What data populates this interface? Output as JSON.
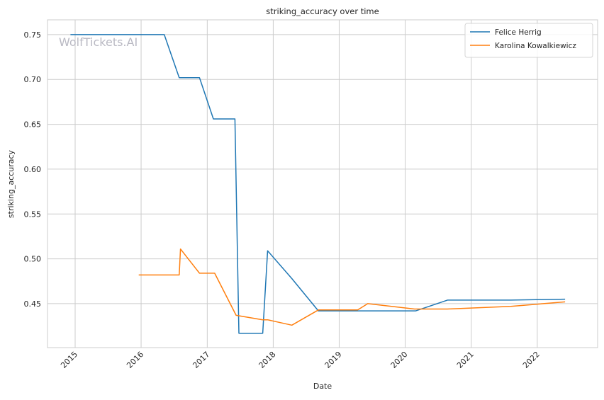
{
  "chart_data": {
    "type": "line",
    "title": "striking_accuracy over time",
    "xlabel": "Date",
    "ylabel": "striking_accuracy",
    "xlim": [
      "2014-08-01",
      "2022-12-01"
    ],
    "ylim": [
      0.401,
      0.7665
    ],
    "x_ticks": [
      "2015",
      "2016",
      "2017",
      "2018",
      "2019",
      "2020",
      "2021",
      "2022"
    ],
    "y_ticks": [
      "0.45",
      "0.50",
      "0.55",
      "0.60",
      "0.65",
      "0.70",
      "0.75"
    ],
    "grid": true,
    "legend_position": "top-right",
    "watermark": "WolfTickets.AI",
    "series": [
      {
        "name": "Felice Herrig",
        "color": "#1f77b4",
        "points": [
          [
            "2014-12-06",
            0.75
          ],
          [
            "2016-05-08",
            0.75
          ],
          [
            "2016-07-30",
            0.702
          ],
          [
            "2016-11-19",
            0.702
          ],
          [
            "2017-02-04",
            0.656
          ],
          [
            "2017-06-03",
            0.656
          ],
          [
            "2017-06-25",
            0.417
          ],
          [
            "2017-11-04",
            0.417
          ],
          [
            "2017-12-01",
            0.509
          ],
          [
            "2018-04-14",
            0.478
          ],
          [
            "2018-09-08",
            0.442
          ],
          [
            "2019-04-13",
            0.442
          ],
          [
            "2020-02-29",
            0.442
          ],
          [
            "2020-08-22",
            0.454
          ],
          [
            "2021-08-07",
            0.454
          ],
          [
            "2022-06-04",
            0.455
          ]
        ]
      },
      {
        "name": "Karolina Kowalkiewicz",
        "color": "#ff7f0e",
        "points": [
          [
            "2015-12-19",
            0.482
          ],
          [
            "2016-07-30",
            0.482
          ],
          [
            "2016-08-06",
            0.511
          ],
          [
            "2016-11-19",
            0.484
          ],
          [
            "2017-02-11",
            0.484
          ],
          [
            "2017-06-10",
            0.437
          ],
          [
            "2017-11-04",
            0.432
          ],
          [
            "2017-12-01",
            0.432
          ],
          [
            "2018-04-14",
            0.426
          ],
          [
            "2018-09-08",
            0.443
          ],
          [
            "2019-04-13",
            0.443
          ],
          [
            "2019-06-08",
            0.45
          ],
          [
            "2020-02-22",
            0.444
          ],
          [
            "2020-08-22",
            0.444
          ],
          [
            "2021-08-07",
            0.447
          ],
          [
            "2022-06-04",
            0.452
          ]
        ]
      }
    ]
  }
}
